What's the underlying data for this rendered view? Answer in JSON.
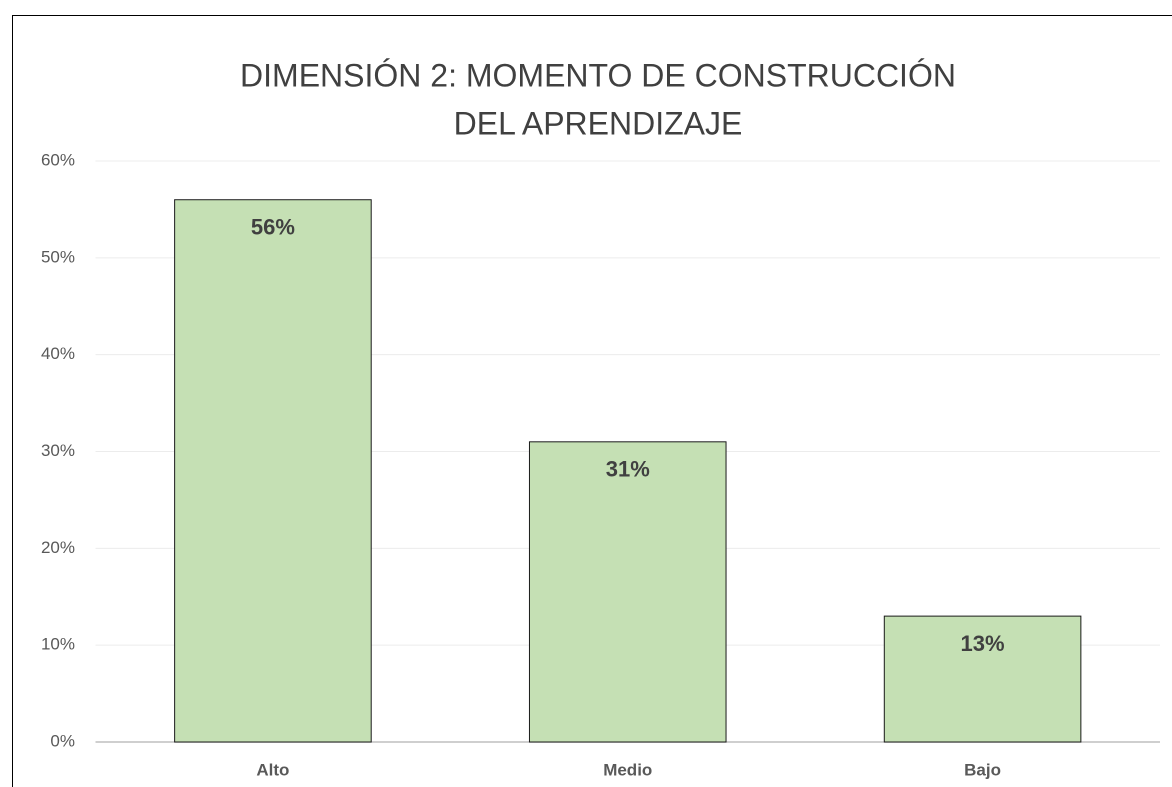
{
  "chart_data": {
    "type": "bar",
    "title": [
      "DIMENSIÓN 2: MOMENTO DE CONSTRUCCIÓN",
      "DEL APRENDIZAJE"
    ],
    "categories": [
      "Alto",
      "Medio",
      "Bajo"
    ],
    "values": [
      56,
      31,
      13
    ],
    "value_labels": [
      "56%",
      "31%",
      "13%"
    ],
    "color": "#c5e0b4",
    "ylim": [
      0,
      60
    ],
    "yticks": [
      {
        "value": 0,
        "label": "0%"
      },
      {
        "value": 10,
        "label": "10%"
      },
      {
        "value": 20,
        "label": "20%"
      },
      {
        "value": 30,
        "label": "30%"
      },
      {
        "value": 40,
        "label": "40%"
      },
      {
        "value": 50,
        "label": "50%"
      },
      {
        "value": 60,
        "label": "60%"
      }
    ],
    "grid": true
  }
}
